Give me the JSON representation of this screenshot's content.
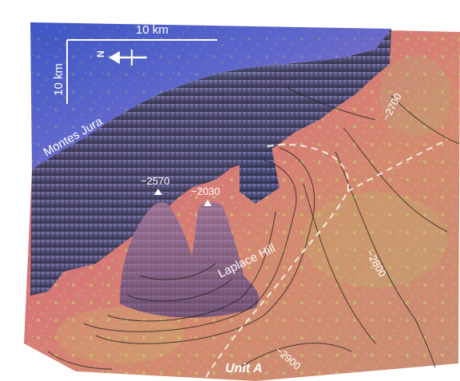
{
  "scale_bar": {
    "horizontal_label": "10 km",
    "vertical_label": "10 km"
  },
  "north_arrow": {
    "label": "N",
    "icon": "north-arrow-icon"
  },
  "features": {
    "montes_jura": "Montes Jura",
    "laplace_hill": "Laplace Hill",
    "unit_a": "Unit A"
  },
  "peaks": [
    {
      "label": "−2570",
      "marker": "peak-triangle-icon"
    },
    {
      "label": "−2030",
      "marker": "peak-triangle-icon"
    }
  ],
  "contour_labels": [
    "−2700",
    "−2800",
    "−2900"
  ],
  "colors": {
    "terrain_red": "#d8606a",
    "terrain_orange": "#d89a6a",
    "terrain_yellow_green": "#b6c86a",
    "highland_blue": "#4a5cc8",
    "highland_purple": "#8a6ac0",
    "contour_line": "#1a1a1a",
    "boundary_dashed": "#f2ece0",
    "label_text": "#ffffff"
  }
}
